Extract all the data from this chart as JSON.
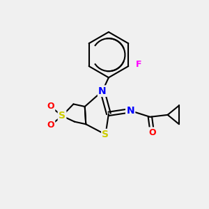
{
  "background_color": "#f0f0f0",
  "atom_colors": {
    "S": "#cccc00",
    "N": "#0000ff",
    "O": "#ff0000",
    "F": "#ff00ff",
    "C": "#000000"
  },
  "bond_color": "#000000",
  "title": ""
}
